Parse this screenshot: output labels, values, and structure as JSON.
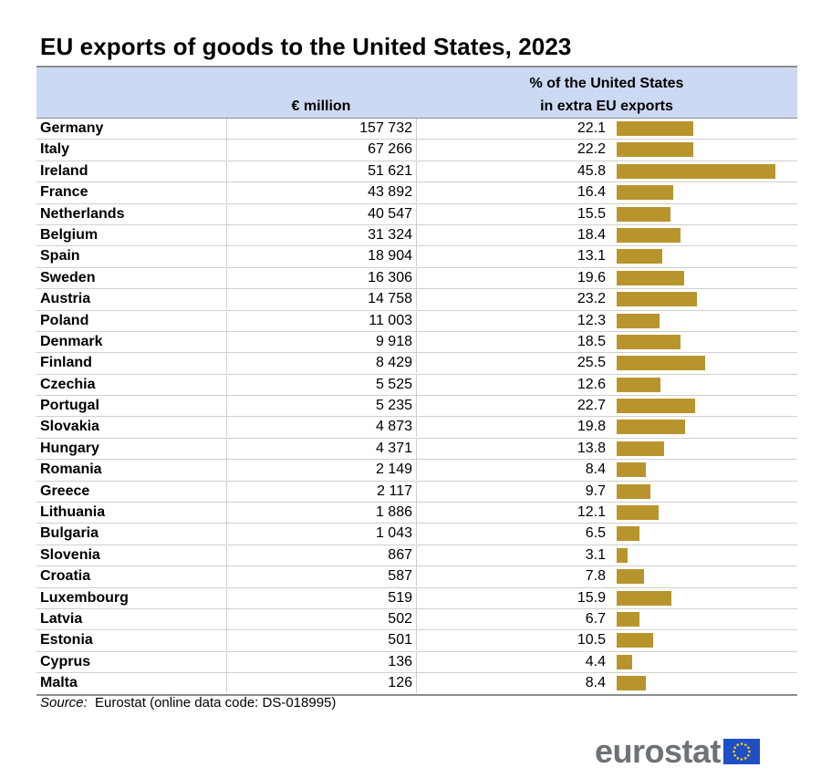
{
  "title": "EU exports of goods to the United States, 2023",
  "header": {
    "col_million": "€ million",
    "col_pct_line1": "% of the United States",
    "col_pct_line2": "in extra EU exports"
  },
  "rows": [
    {
      "country": "Germany",
      "value": "157 732",
      "pct": "22.1"
    },
    {
      "country": "Italy",
      "value": "67 266",
      "pct": "22.2"
    },
    {
      "country": "Ireland",
      "value": "51 621",
      "pct": "45.8"
    },
    {
      "country": "France",
      "value": "43 892",
      "pct": "16.4"
    },
    {
      "country": "Netherlands",
      "value": "40 547",
      "pct": "15.5"
    },
    {
      "country": "Belgium",
      "value": "31 324",
      "pct": "18.4"
    },
    {
      "country": "Spain",
      "value": "18 904",
      "pct": "13.1"
    },
    {
      "country": "Sweden",
      "value": "16 306",
      "pct": "19.6"
    },
    {
      "country": "Austria",
      "value": "14 758",
      "pct": "23.2"
    },
    {
      "country": "Poland",
      "value": "11 003",
      "pct": "12.3"
    },
    {
      "country": "Denmark",
      "value": "9 918",
      "pct": "18.5"
    },
    {
      "country": "Finland",
      "value": "8 429",
      "pct": "25.5"
    },
    {
      "country": "Czechia",
      "value": "5 525",
      "pct": "12.6"
    },
    {
      "country": "Portugal",
      "value": "5 235",
      "pct": "22.7"
    },
    {
      "country": "Slovakia",
      "value": "4 873",
      "pct": "19.8"
    },
    {
      "country": "Hungary",
      "value": "4 371",
      "pct": "13.8"
    },
    {
      "country": "Romania",
      "value": "2 149",
      "pct": "8.4"
    },
    {
      "country": "Greece",
      "value": "2 117",
      "pct": "9.7"
    },
    {
      "country": "Lithuania",
      "value": "1 886",
      "pct": "12.1"
    },
    {
      "country": "Bulgaria",
      "value": "1 043",
      "pct": "6.5"
    },
    {
      "country": "Slovenia",
      "value": "867",
      "pct": "3.1"
    },
    {
      "country": "Croatia",
      "value": "587",
      "pct": "7.8"
    },
    {
      "country": "Luxembourg",
      "value": "519",
      "pct": "15.9"
    },
    {
      "country": "Latvia",
      "value": "502",
      "pct": "6.7"
    },
    {
      "country": "Estonia",
      "value": "501",
      "pct": "10.5"
    },
    {
      "country": "Cyprus",
      "value": "136",
      "pct": "4.4"
    },
    {
      "country": "Malta",
      "value": "126",
      "pct": "8.4"
    }
  ],
  "chart_data": {
    "type": "table",
    "title": "EU exports of goods to the United States, 2023",
    "columns": [
      "€ million",
      "% of the United States in extra EU exports"
    ],
    "categories": [
      "Germany",
      "Italy",
      "Ireland",
      "France",
      "Netherlands",
      "Belgium",
      "Spain",
      "Sweden",
      "Austria",
      "Poland",
      "Denmark",
      "Finland",
      "Czechia",
      "Portugal",
      "Slovakia",
      "Hungary",
      "Romania",
      "Greece",
      "Lithuania",
      "Bulgaria",
      "Slovenia",
      "Croatia",
      "Luxembourg",
      "Latvia",
      "Estonia",
      "Cyprus",
      "Malta"
    ],
    "series": [
      {
        "name": "€ million",
        "values": [
          157732,
          67266,
          51621,
          43892,
          40547,
          31324,
          18904,
          16306,
          14758,
          11003,
          9918,
          8429,
          5525,
          5235,
          4873,
          4371,
          2149,
          2117,
          1886,
          1043,
          867,
          587,
          519,
          502,
          501,
          136,
          126
        ]
      },
      {
        "name": "% of the United States in extra EU exports",
        "values": [
          22.1,
          22.2,
          45.8,
          16.4,
          15.5,
          18.4,
          13.1,
          19.6,
          23.2,
          12.3,
          18.5,
          25.5,
          12.6,
          22.7,
          19.8,
          13.8,
          8.4,
          9.7,
          12.1,
          6.5,
          3.1,
          7.8,
          15.9,
          6.7,
          10.5,
          4.4,
          8.4
        ]
      }
    ],
    "bar_color": "#b8952c",
    "xlim": [
      0,
      50
    ]
  },
  "source": {
    "label": "Source:",
    "text": "Eurostat (online data code: DS-018995)"
  },
  "logo": {
    "text": "eurostat",
    "flag_color": "#1f4fc4",
    "star_color": "#f5d10a"
  }
}
